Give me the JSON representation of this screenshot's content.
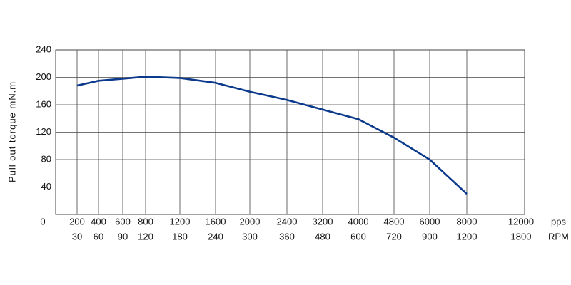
{
  "chart_data": {
    "type": "line",
    "y_label": "Pull out torque mN.m",
    "categories": [
      "200",
      "400",
      "600",
      "800",
      "1200",
      "1600",
      "2000",
      "2400",
      "3200",
      "4000",
      "4800",
      "6000",
      "8000",
      "12000"
    ],
    "secondary_categories": [
      "30",
      "60",
      "90",
      "120",
      "180",
      "240",
      "300",
      "360",
      "480",
      "600",
      "720",
      "900",
      "1200",
      "1800"
    ],
    "x_unit": "pps",
    "secondary_unit": "RPM",
    "series": [
      {
        "name": "Pull out torque",
        "color": "#0b3a8c",
        "values": [
          188,
          195,
          198,
          201,
          199,
          192,
          179,
          167,
          153,
          139,
          112,
          80,
          30,
          null
        ]
      }
    ],
    "ylim": [
      0,
      240
    ],
    "yticks": [
      0,
      40,
      80,
      120,
      160,
      200,
      240
    ],
    "grid": true
  }
}
